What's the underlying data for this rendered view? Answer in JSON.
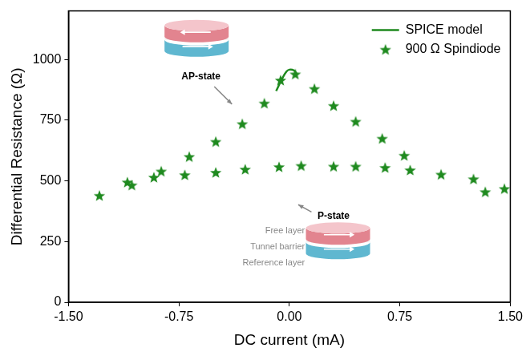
{
  "chart_data": {
    "type": "scatter",
    "x_label": "DC current (mA)",
    "y_label": "Differential Resistance (Ω)",
    "xlim": [
      -1.5,
      1.5
    ],
    "xticks": [
      {
        "value": -1.5,
        "label": "-1.50"
      },
      {
        "value": -0.75,
        "label": "-0.75"
      },
      {
        "value": 0,
        "label": "0.00"
      },
      {
        "value": 0.75,
        "label": "0.75"
      },
      {
        "value": 1.5,
        "label": "1.50"
      }
    ],
    "ylim": [
      0,
      1200
    ],
    "yticks": [
      0,
      250,
      500,
      750,
      1000
    ],
    "grid": false,
    "legend": "upper right",
    "series": [
      {
        "name": "SPICE model",
        "type": "line",
        "color": "#1f8a1f",
        "line_style": "solid",
        "x": [
          -0.09,
          -0.05,
          -0.02,
          0.0,
          0.03,
          0.05
        ],
        "values": [
          870,
          920,
          950,
          958,
          955,
          940
        ]
      },
      {
        "name": "900 Ω Spindiode",
        "type": "scatter",
        "color": "#1f8a1f",
        "marker": "star",
        "x": [
          -1.29,
          -1.1,
          -1.07,
          -0.92,
          -0.87,
          -0.71,
          -0.5,
          -0.3,
          -0.07,
          0.08,
          0.3,
          0.45,
          0.65,
          0.82,
          1.03,
          1.25,
          1.33,
          1.46,
          -0.68,
          -0.5,
          -0.32,
          -0.17,
          -0.06,
          0.04,
          0.17,
          0.3,
          0.45,
          0.63,
          0.78
        ],
        "values": [
          440,
          495,
          483,
          515,
          540,
          525,
          535,
          548,
          558,
          563,
          560,
          560,
          555,
          545,
          527,
          508,
          455,
          468,
          600,
          662,
          735,
          820,
          915,
          940,
          880,
          810,
          745,
          675,
          605
        ]
      }
    ],
    "annotations": {
      "ap_state": "AP-state",
      "p_state": "P-state",
      "layers": [
        "Free layer",
        "Tunnel barrier",
        "Reference layer"
      ]
    }
  }
}
